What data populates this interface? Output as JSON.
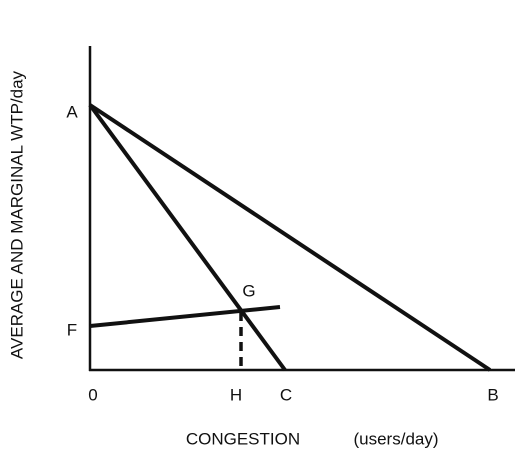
{
  "y_axis_label": "AVERAGE AND MARGINAL WTP/day",
  "x_axis_label": {
    "title": "CONGESTION",
    "unit": "(users/day)"
  },
  "points": {
    "A": "A",
    "F": "F",
    "G": "G",
    "origin": "0",
    "H": "H",
    "C": "C",
    "B": "B"
  }
}
